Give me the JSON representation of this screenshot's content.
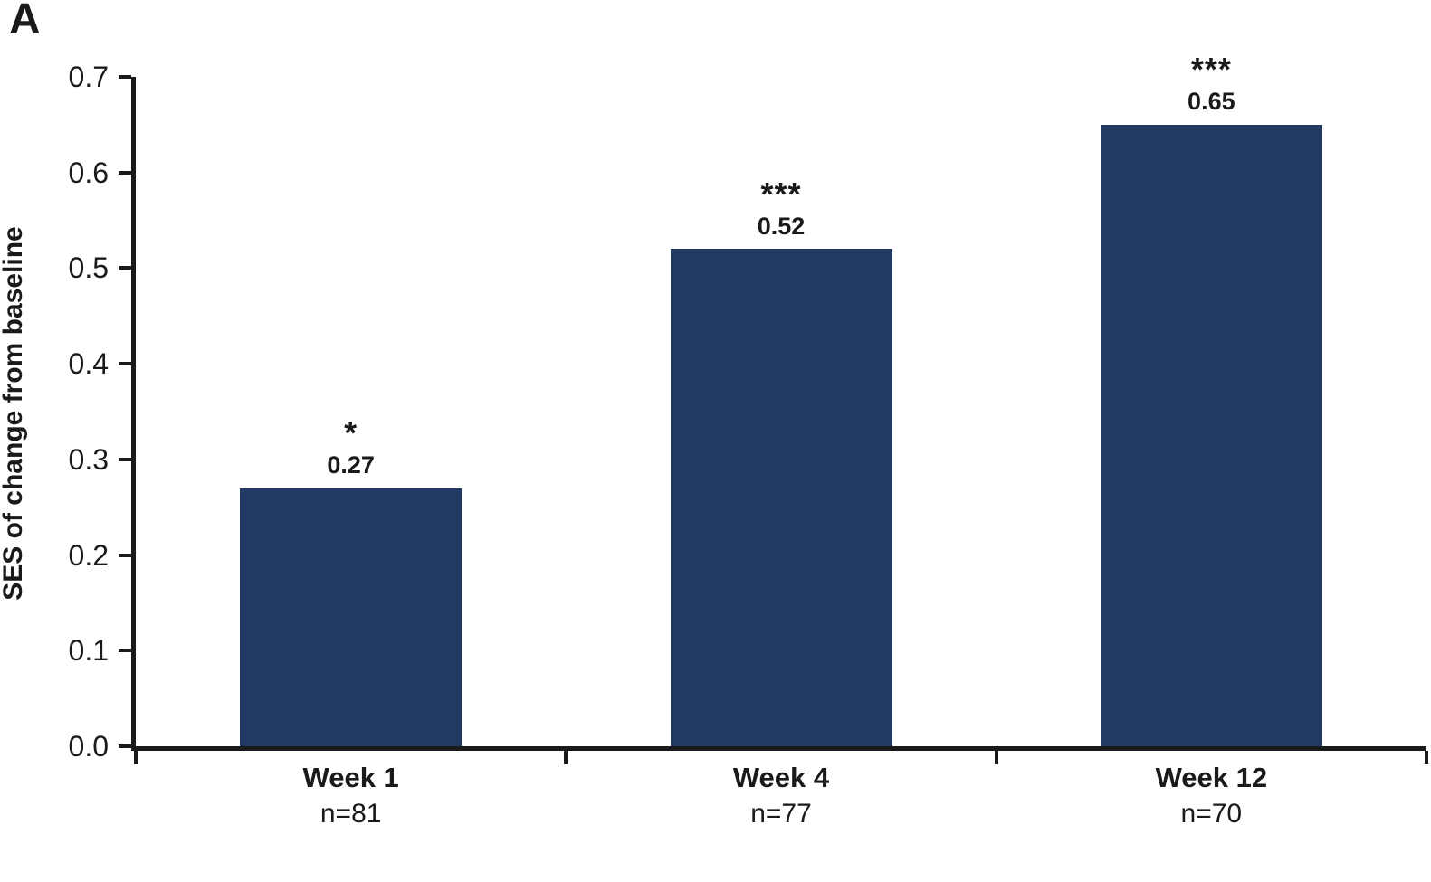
{
  "chart_data": {
    "type": "bar",
    "panel_label": "A",
    "title": "",
    "xlabel": "",
    "ylabel": "SES of change from baseline",
    "ylim": [
      0.0,
      0.7
    ],
    "ytick_labels": [
      "0.0",
      "0.1",
      "0.2",
      "0.3",
      "0.4",
      "0.5",
      "0.6",
      "0.7"
    ],
    "ytick_values": [
      0.0,
      0.1,
      0.2,
      0.3,
      0.4,
      0.5,
      0.6,
      0.7
    ],
    "grid": false,
    "legend": null,
    "bar_color": "#223A63",
    "axis_color": "#1a1a1a",
    "categories": [
      "Week 1",
      "Week 4",
      "Week 12"
    ],
    "sublabels": [
      "n=81",
      "n=77",
      "n=70"
    ],
    "values": [
      0.27,
      0.52,
      0.65
    ],
    "value_labels": [
      "0.27",
      "0.52",
      "0.65"
    ],
    "significance": [
      "*",
      "***",
      "***"
    ]
  }
}
